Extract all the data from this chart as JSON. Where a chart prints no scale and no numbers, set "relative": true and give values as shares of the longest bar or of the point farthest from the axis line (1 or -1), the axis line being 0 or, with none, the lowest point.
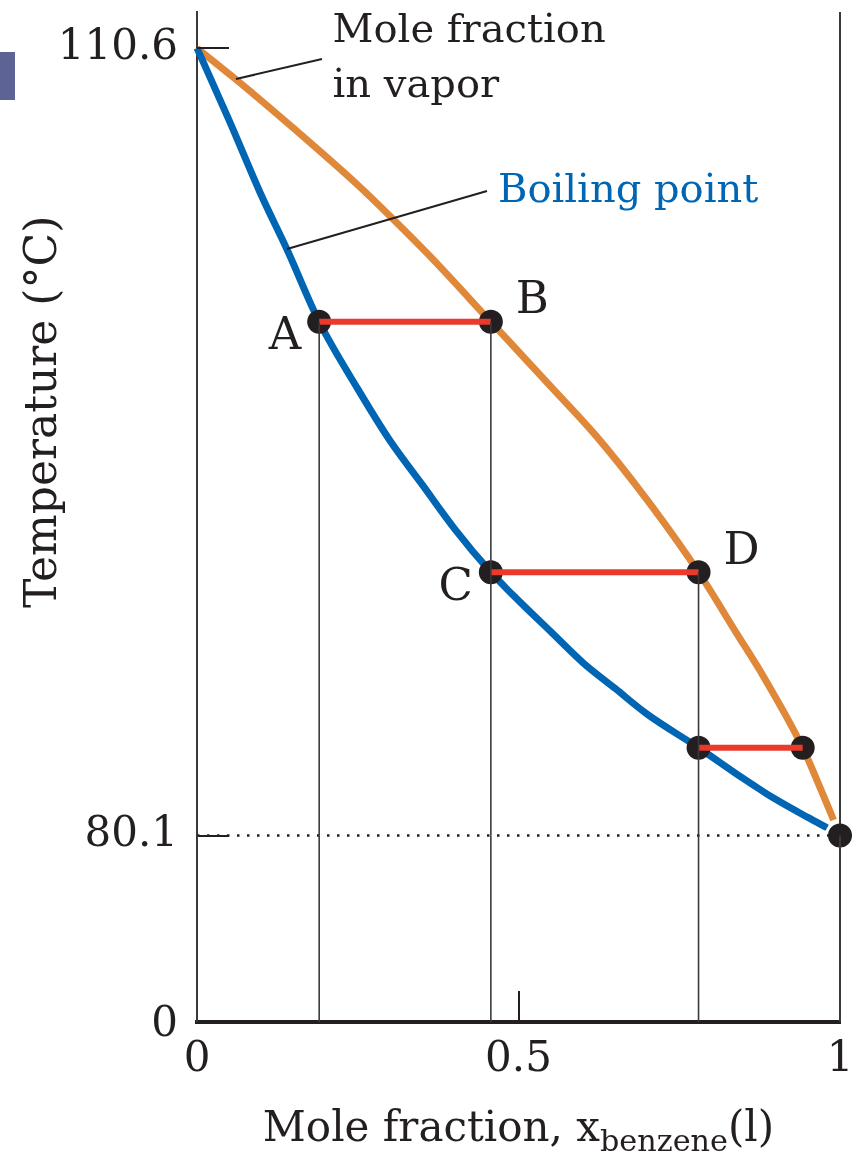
{
  "chart_data": [
    {
      "type": "line",
      "ylabel": "Temperature (°C)",
      "xlim": [
        0,
        1
      ],
      "ylim": [
        80.1,
        112
      ],
      "yticks": [
        80.1,
        110.6
      ],
      "tick_labels": "y",
      "series": [
        {
          "type": "line",
          "name": "Mole fraction in vapor",
          "color": "#e0883a",
          "x": [
            0,
            0.06,
            0.15,
            0.25,
            0.3,
            0.36,
            0.457,
            0.55,
            0.62,
            0.7,
            0.78,
            0.84,
            0.88,
            0.942,
            0.97,
            0.99
          ],
          "values": [
            110.6,
            109.4,
            107.5,
            105.3,
            104.1,
            102.6,
            100,
            97.5,
            95.6,
            93.1,
            90.3,
            87.9,
            86.3,
            83.5,
            81.9,
            80.7
          ]
        },
        {
          "type": "line",
          "name": "Boiling point",
          "color": "#0066b3",
          "x": [
            0,
            0.05,
            0.1,
            0.14,
            0.19,
            0.25,
            0.3,
            0.35,
            0.4,
            0.457,
            0.5,
            0.55,
            0.6,
            0.65,
            0.7,
            0.78,
            0.85,
            0.9,
            0.95,
            0.98
          ],
          "values": [
            110.6,
            107.8,
            104.9,
            102.8,
            100,
            97.4,
            95.4,
            93.7,
            92,
            90.3,
            89.2,
            88,
            86.8,
            85.8,
            84.8,
            83.5,
            82.3,
            81.5,
            80.8,
            80.4
          ]
        },
        {
          "type": "scatter",
          "marker": "circle",
          "color": "#231f20",
          "x": [
            0.19,
            0.457,
            0.457,
            0.78,
            0.78,
            0.942,
            1
          ],
          "values": [
            100,
            100,
            90.3,
            90.3,
            83.5,
            83.5,
            80.1
          ]
        },
        {
          "type": "line",
          "color": "#e93a2c",
          "x": [
            0.19,
            0.457
          ],
          "values": [
            100,
            100
          ]
        },
        {
          "type": "line",
          "color": "#e93a2c",
          "x": [
            0.457,
            0.78
          ],
          "values": [
            90.3,
            90.3
          ]
        },
        {
          "type": "line",
          "color": "#e93a2c",
          "x": [
            0.78,
            0.942
          ],
          "values": [
            83.5,
            83.5
          ]
        },
        {
          "type": "line",
          "color": "#3a3a3a",
          "x": [
            0.19,
            0.19
          ],
          "values": [
            80.1,
            100
          ]
        },
        {
          "type": "line",
          "color": "#3a3a3a",
          "x": [
            0.457,
            0.457
          ],
          "values": [
            80.1,
            100
          ]
        },
        {
          "type": "line",
          "color": "#3a3a3a",
          "x": [
            0.78,
            0.78
          ],
          "values": [
            80.1,
            90.3
          ]
        }
      ],
      "ref_lines": [
        {
          "axis": "y",
          "value": 80.1,
          "line_style": "dotted",
          "color": "#231f20"
        },
        {
          "axis": "x",
          "value": 1,
          "color": "#3a3a3a"
        }
      ],
      "annotations": [
        {
          "text": "A",
          "x": 0.19,
          "y": 100
        },
        {
          "text": "B",
          "x": 0.457,
          "y": 100
        },
        {
          "text": "C",
          "x": 0.457,
          "y": 90.3
        },
        {
          "text": "D",
          "x": 0.78,
          "y": 90.3
        }
      ]
    },
    {
      "type": "line",
      "relative": true,
      "xlabel": "Mole fraction, x$_{benzene}$(l)",
      "xlim": [
        0,
        1
      ],
      "xticks": [
        0,
        0.5,
        1
      ],
      "series": [
        {
          "type": "line",
          "color": "#3a3a3a",
          "x": [
            0.19,
            0.19
          ],
          "values": [
            0,
            1
          ]
        },
        {
          "type": "line",
          "color": "#3a3a3a",
          "x": [
            0.457,
            0.457
          ],
          "values": [
            0,
            1
          ]
        },
        {
          "type": "line",
          "color": "#3a3a3a",
          "x": [
            0.78,
            0.78
          ],
          "values": [
            0,
            1
          ]
        }
      ],
      "ref_lines": [
        {
          "axis": "x",
          "value": 0,
          "color": "#3a3a3a"
        },
        {
          "axis": "x",
          "value": 1,
          "color": "#3a3a3a"
        }
      ],
      "annotations": [
        "0"
      ]
    }
  ]
}
